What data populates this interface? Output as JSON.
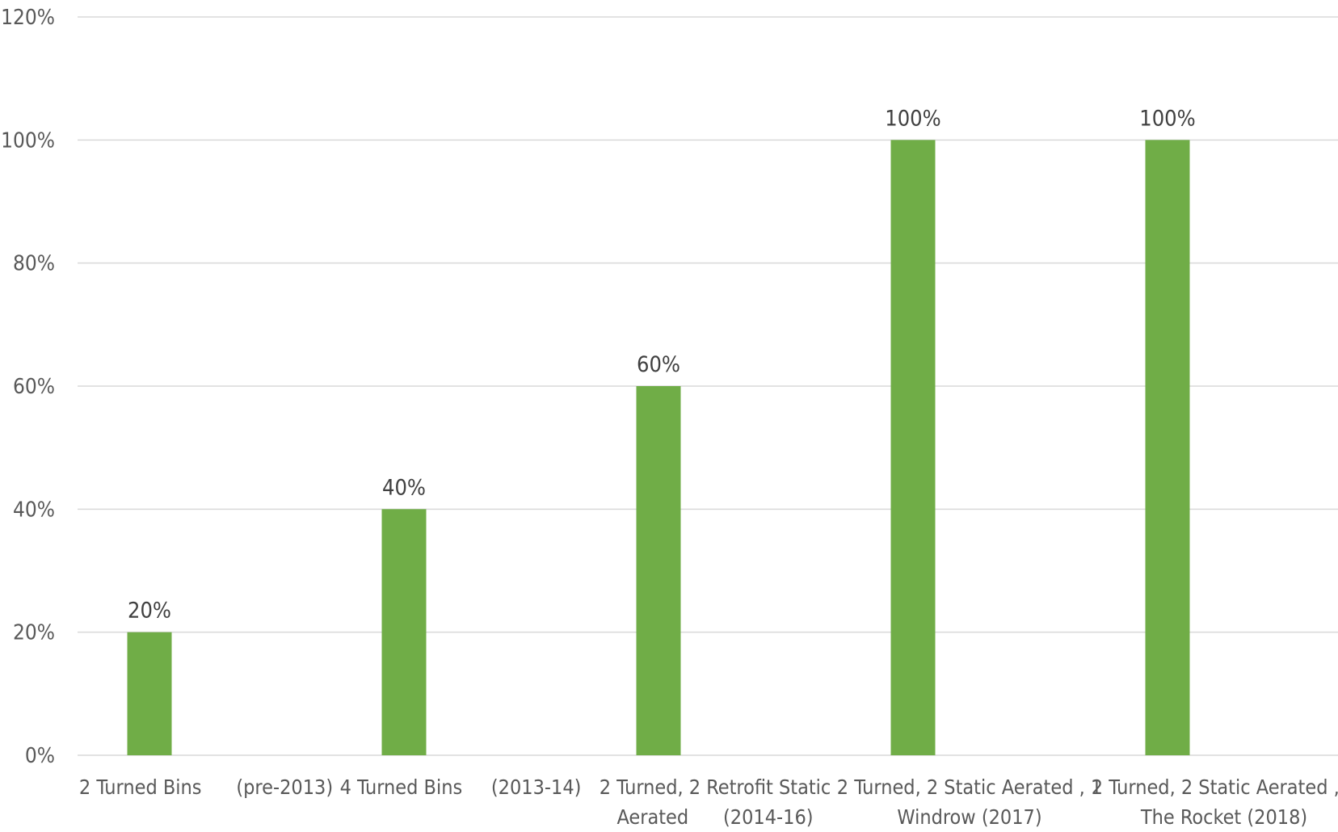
{
  "chart_data": {
    "type": "bar",
    "title": "",
    "xlabel": "",
    "ylabel": "",
    "ylim": [
      0,
      1.2
    ],
    "yticks": [
      "0%",
      "20%",
      "40%",
      "60%",
      "80%",
      "100%",
      "120%"
    ],
    "grid": true,
    "legend": "none",
    "bar_color": "#70ad47",
    "categories": [
      [
        "2 Turned Bins      (pre-2013)"
      ],
      [
        "4 Turned Bins     (2013-14)"
      ],
      [
        "2 Turned, 2 Retrofit Static",
        "Aerated      (2014-16)"
      ],
      [
        "2 Turned, 2 Static Aerated , 1",
        "Windrow (2017)"
      ],
      [
        "2 Turned, 2 Static Aerated , 1",
        "The Rocket (2018)"
      ]
    ],
    "values": [
      0.2,
      0.4,
      0.6,
      1.0,
      1.0
    ],
    "data_labels": [
      "20%",
      "40%",
      "60%",
      "100%",
      "100%"
    ]
  }
}
